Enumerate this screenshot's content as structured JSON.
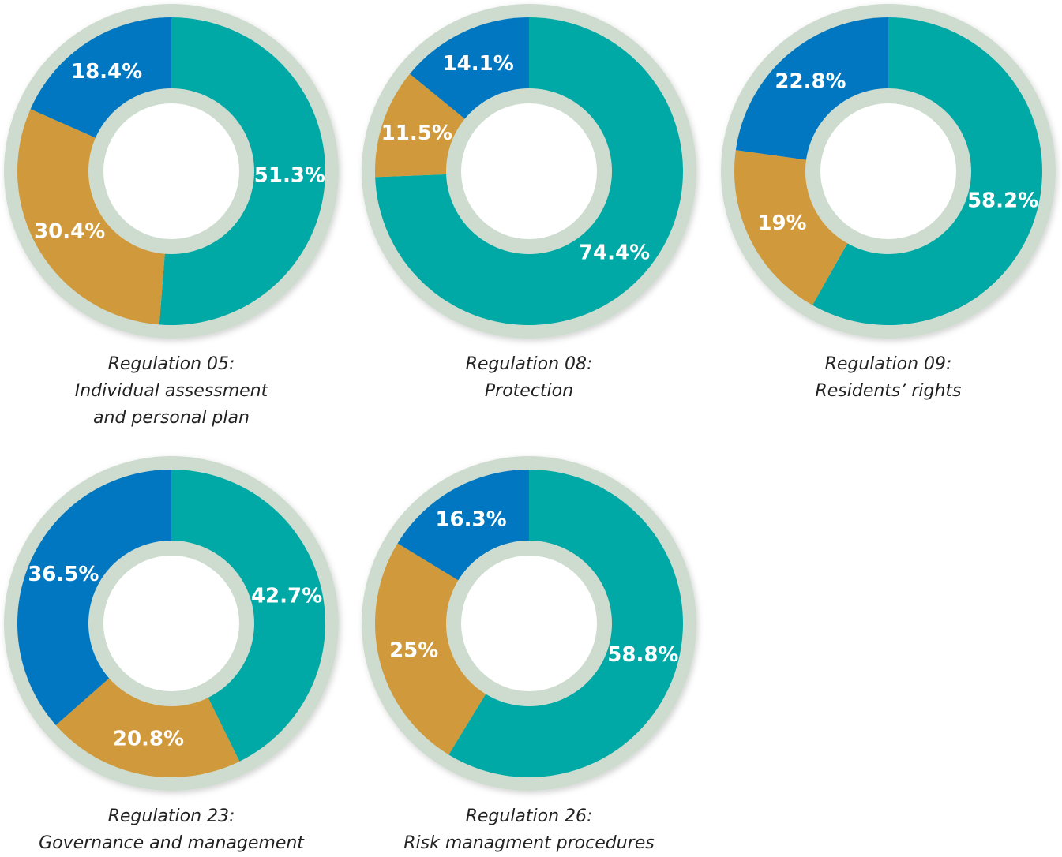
{
  "chart_data": [
    {
      "type": "donut",
      "title": "Regulation 05:",
      "subtitle": "Individual assessment and personal plan",
      "values": [
        51.3,
        30.4,
        18.4
      ],
      "value_labels": [
        "51.3%",
        "30.4%",
        "18.4%"
      ],
      "colors": [
        "#00a9a5",
        "#d09a3c",
        "#0077c0"
      ]
    },
    {
      "type": "donut",
      "title": "Regulation 08:",
      "subtitle": "Protection",
      "values": [
        74.4,
        11.5,
        14.1
      ],
      "value_labels": [
        "74.4%",
        "11.5%",
        "14.1%"
      ],
      "colors": [
        "#00a9a5",
        "#d09a3c",
        "#0077c0"
      ]
    },
    {
      "type": "donut",
      "title": "Regulation 09:",
      "subtitle": "Residents’ rights",
      "values": [
        58.2,
        19,
        22.8
      ],
      "value_labels": [
        "58.2%",
        "19%",
        "22.8%"
      ],
      "colors": [
        "#00a9a5",
        "#d09a3c",
        "#0077c0"
      ]
    },
    {
      "type": "donut",
      "title": "Regulation 23:",
      "subtitle": "Governance and management",
      "values": [
        42.7,
        20.8,
        36.5
      ],
      "value_labels": [
        "42.7%",
        "20.8%",
        "36.5%"
      ],
      "colors": [
        "#00a9a5",
        "#d09a3c",
        "#0077c0"
      ]
    },
    {
      "type": "donut",
      "title": "Regulation 26:",
      "subtitle": "Risk managment procedures",
      "values": [
        58.8,
        25,
        16.3
      ],
      "value_labels": [
        "58.8%",
        "25%",
        "16.3%"
      ],
      "colors": [
        "#00a9a5",
        "#d09a3c",
        "#0077c0"
      ]
    }
  ]
}
